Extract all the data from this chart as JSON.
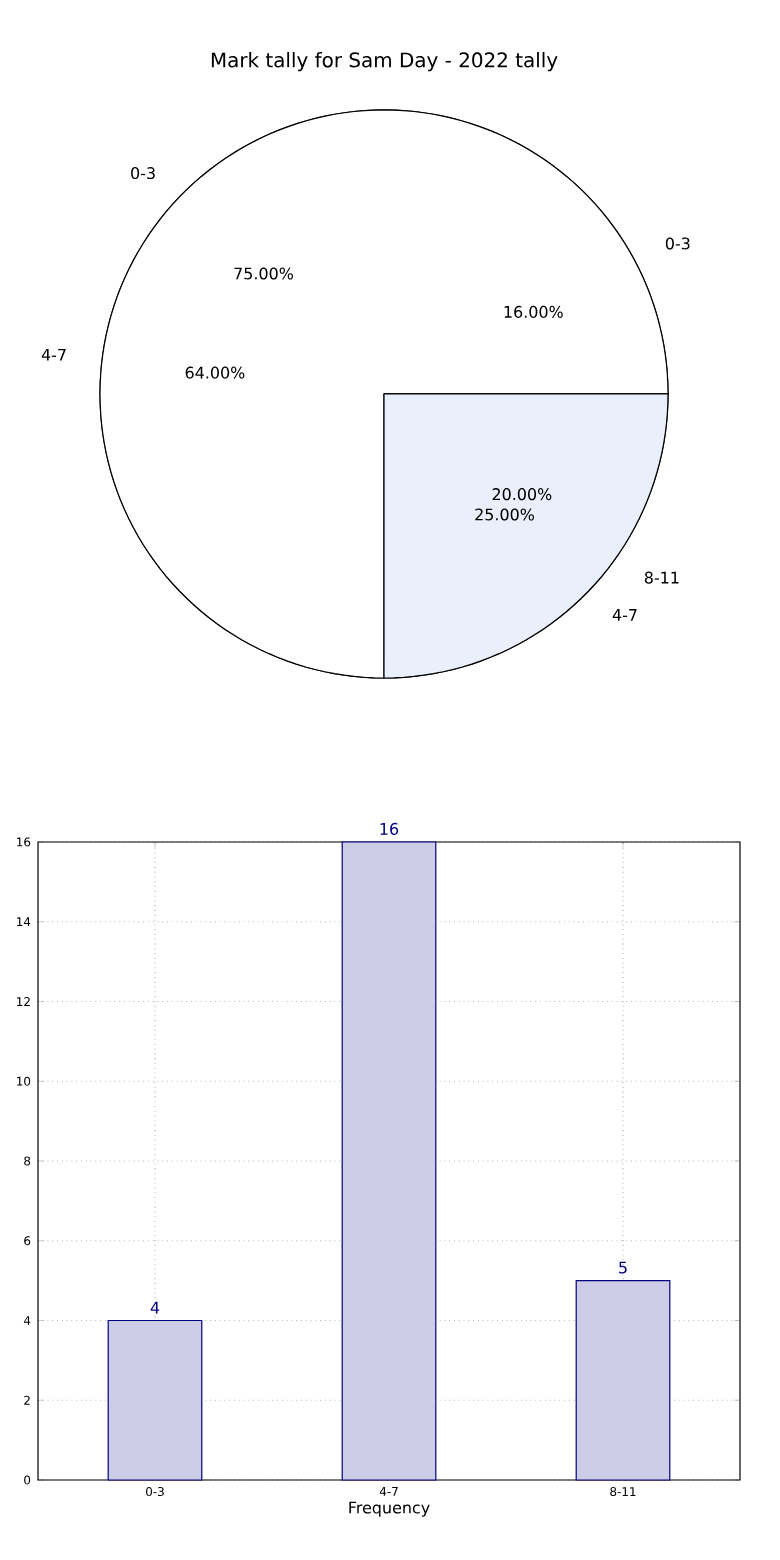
{
  "chart_data": [
    {
      "type": "pie",
      "title": "Mark tally for Sam Day - 2022 tally",
      "categories": [
        "0-3",
        "4-7",
        "8-11"
      ],
      "values": [
        16,
        64,
        20
      ],
      "colors": [
        "#ffffff",
        "#ffffff",
        "#ffffff"
      ],
      "value_labels": [
        "16.00%",
        "64.00%",
        "20.00%"
      ]
    },
    {
      "type": "pie",
      "categories": [
        "0-3",
        "4-7"
      ],
      "values": [
        75,
        25
      ],
      "colors": [
        "#ffffff",
        "#eaf0fb"
      ],
      "value_labels": [
        "75.00%",
        "25.00%"
      ]
    },
    {
      "type": "bar",
      "categories": [
        "0-3",
        "4-7",
        "8-11"
      ],
      "values": [
        4,
        16,
        5
      ],
      "color": "#ccccE6",
      "xlabel": "Frequency",
      "ylim": [
        0,
        16
      ],
      "yticks": [
        0,
        2,
        4,
        6,
        8,
        10,
        12,
        14,
        16
      ],
      "grid": true,
      "data_labels": true
    }
  ]
}
